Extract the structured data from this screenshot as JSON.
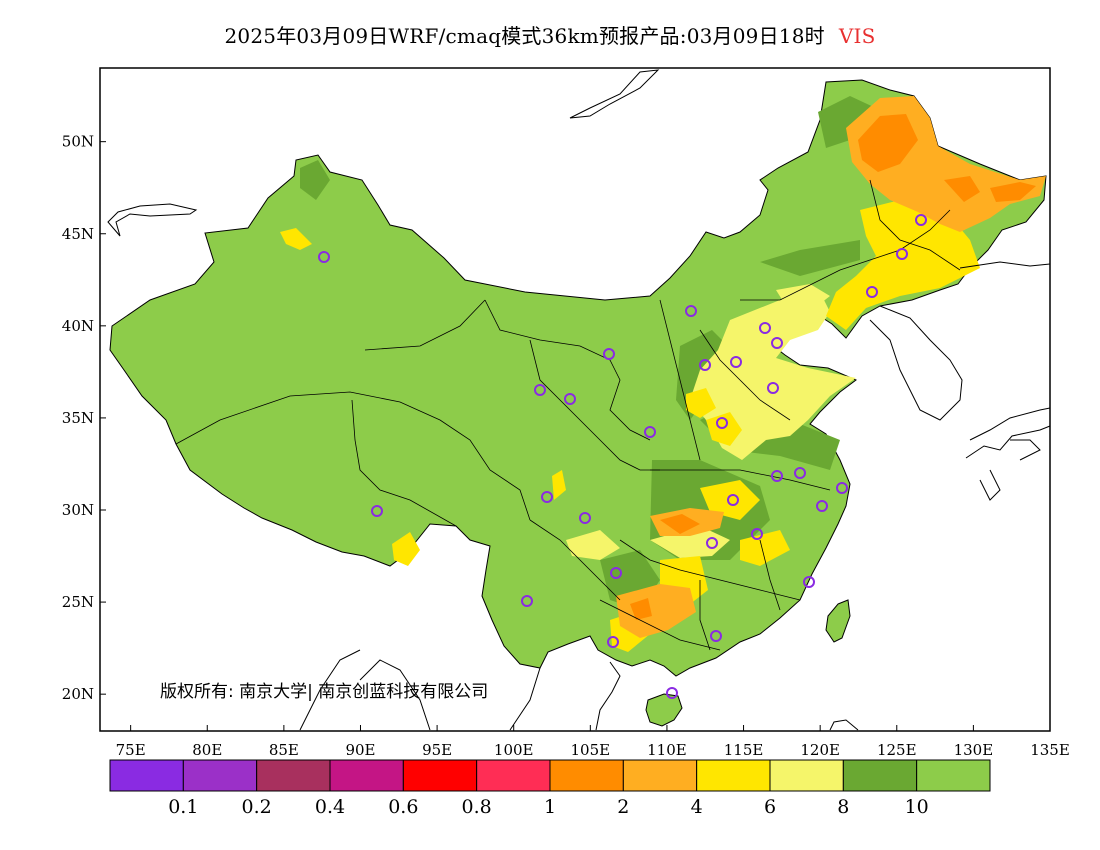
{
  "title": {
    "text": "2025年03月09日WRF/cmaq模式36km预报产品:03月09日18时",
    "variable": "VIS",
    "variable_color": "#e83030"
  },
  "map": {
    "lon_range": [
      73,
      135
    ],
    "lat_range": [
      18,
      54
    ],
    "lon_ticks": [
      "75E",
      "80E",
      "85E",
      "90E",
      "95E",
      "100E",
      "105E",
      "110E",
      "115E",
      "120E",
      "125E",
      "130E",
      "135E"
    ],
    "lat_ticks": [
      "20N",
      "25N",
      "30N",
      "35N",
      "40N",
      "45N",
      "50N"
    ],
    "copyright": "版权所有: 南京大学| 南京创蓝科技有限公司",
    "station_marker": "circle-purple"
  },
  "colorbar": {
    "colors": [
      "#8a2be2",
      "#9b30c8",
      "#a8305e",
      "#c41585",
      "#ff0000",
      "#ff2d55",
      "#ff8c00",
      "#ffae21",
      "#ffe600",
      "#f5f56a",
      "#6aa832",
      "#8dcc4a"
    ],
    "labels": [
      "0.1",
      "0.2",
      "0.4",
      "0.6",
      "0.8",
      "1",
      "2",
      "4",
      "6",
      "8",
      "10"
    ]
  },
  "legend_colors": {
    "land_good": "#8dcc4a",
    "land_dark": "#6aa832",
    "vis_8": "#f5f56a",
    "vis_6": "#ffe600",
    "vis_4": "#ffae21",
    "vis_2": "#ff8c00",
    "station": "#8a2be2"
  }
}
